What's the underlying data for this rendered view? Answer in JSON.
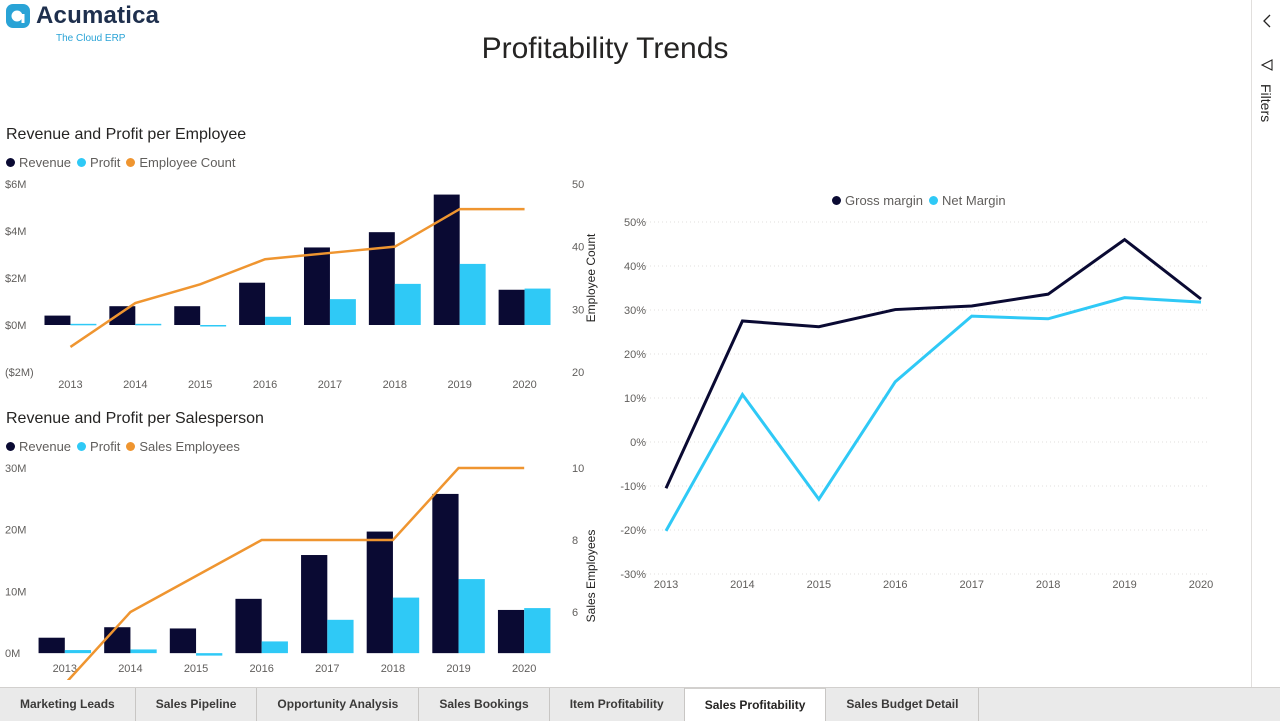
{
  "logo": {
    "name": "Acumatica",
    "tagline": "The Cloud ERP"
  },
  "page_title": "Profitability Trends",
  "colors": {
    "revenue": "#0a0a33",
    "profit": "#2fc9f6",
    "count": "#ef9530",
    "axis_text": "#605e5c",
    "grid": "#e1dfdd"
  },
  "side_pane": {
    "label": "Filters",
    "collapse_icon": "chevron-left-icon",
    "filter_icon": "filter-icon"
  },
  "tabs": [
    {
      "label": "Marketing Leads",
      "active": false
    },
    {
      "label": "Sales Pipeline",
      "active": false
    },
    {
      "label": "Opportunity Analysis",
      "active": false
    },
    {
      "label": "Sales Bookings",
      "active": false
    },
    {
      "label": "Item Profitability",
      "active": false
    },
    {
      "label": "Sales Profitability",
      "active": true
    },
    {
      "label": "Sales Budget Detail",
      "active": false
    }
  ],
  "chart_data": [
    {
      "type": "bar",
      "title": "Revenue and Profit per Employee",
      "categories": [
        "2013",
        "2014",
        "2015",
        "2016",
        "2017",
        "2018",
        "2019",
        "2020"
      ],
      "series": [
        {
          "name": "Revenue",
          "kind": "bar",
          "values": [
            0.4,
            0.8,
            0.8,
            1.8,
            3.3,
            3.95,
            5.55,
            1.5
          ]
        },
        {
          "name": "Profit",
          "kind": "bar",
          "values": [
            0.05,
            0.05,
            -0.05,
            0.35,
            1.1,
            1.75,
            2.6,
            1.55
          ]
        },
        {
          "name": "Employee Count",
          "kind": "line",
          "axis": "right",
          "values": [
            24,
            31,
            34,
            38,
            39,
            40,
            46,
            46
          ]
        }
      ],
      "ylim": [
        -2,
        6
      ],
      "yticks": [
        6,
        4,
        2,
        0,
        -2
      ],
      "ytick_labels": [
        "$6M",
        "$4M",
        "$2M",
        "$0M",
        "($2M)"
      ],
      "y2lim": [
        20,
        50
      ],
      "y2ticks": [
        50,
        40,
        30,
        20
      ],
      "y2label": "Employee Count",
      "legend_position": "top-left"
    },
    {
      "type": "bar",
      "title": "Revenue and Profit per Salesperson",
      "categories": [
        "2013",
        "2014",
        "2015",
        "2016",
        "2017",
        "2018",
        "2019",
        "2020"
      ],
      "series": [
        {
          "name": "Revenue",
          "kind": "bar",
          "values": [
            2.5,
            4.2,
            4.0,
            8.8,
            15.9,
            19.7,
            25.8,
            7.0
          ]
        },
        {
          "name": "Profit",
          "kind": "bar",
          "values": [
            0.5,
            0.6,
            -0.4,
            1.9,
            5.4,
            9.0,
            12.0,
            7.3
          ]
        },
        {
          "name": "Sales Employees",
          "kind": "line",
          "axis": "right",
          "values": [
            4,
            6,
            7,
            8,
            8,
            8,
            10,
            10
          ]
        }
      ],
      "ylim": [
        -5,
        30
      ],
      "yticks": [
        30,
        20,
        10,
        0
      ],
      "ytick_labels": [
        "30M",
        "20M",
        "10M",
        "0M"
      ],
      "y2lim": [
        4,
        10
      ],
      "y2ticks": [
        10,
        8,
        6,
        4
      ],
      "y2label": "Sales Employees",
      "legend_position": "top-left"
    },
    {
      "type": "line",
      "title": "",
      "x": [
        "2013",
        "2014",
        "2015",
        "2016",
        "2017",
        "2018",
        "2019",
        "2020"
      ],
      "series": [
        {
          "name": "Gross margin",
          "values": [
            -10.5,
            27.5,
            26.2,
            30.1,
            30.9,
            33.6,
            46,
            32.5
          ]
        },
        {
          "name": "Net Margin",
          "values": [
            -20.2,
            10.8,
            -13,
            13.7,
            28.6,
            28,
            32.8,
            31.8
          ]
        }
      ],
      "ylim": [
        -30,
        50
      ],
      "yticks": [
        50,
        40,
        30,
        20,
        10,
        0,
        -10,
        -20,
        -30
      ],
      "ytick_labels": [
        "50%",
        "40%",
        "30%",
        "20%",
        "10%",
        "0%",
        "-10%",
        "-20%",
        "-30%"
      ],
      "legend_position": "top-center"
    }
  ]
}
